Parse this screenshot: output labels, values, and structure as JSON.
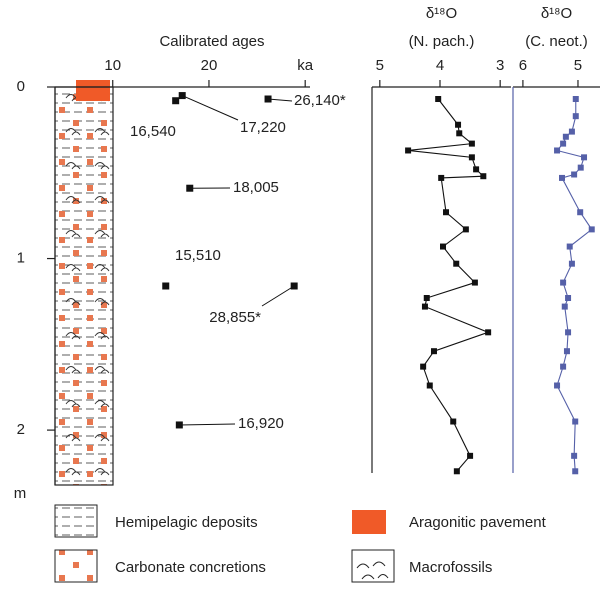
{
  "chart_data": [
    {
      "type": "scatter",
      "title": "Calibrated ages",
      "x": [
        16.54,
        17.22,
        26.14,
        18.005,
        15.51,
        28.855,
        16.92
      ],
      "value_labels": [
        "16,540",
        "17,220",
        "26,140*",
        "18,005",
        "15,510",
        "28,855*",
        "16,920"
      ],
      "y": [
        0.08,
        0.05,
        0.07,
        0.59,
        1.16,
        1.16,
        1.97
      ],
      "xlim": [
        4,
        30.5
      ],
      "xticks": [
        10,
        20,
        {
          "value": 30,
          "label": "ka"
        }
      ],
      "ylim": [
        0,
        2.32
      ],
      "yticks": [
        0,
        1,
        2
      ],
      "ylabel": "m",
      "color": "#111111"
    },
    {
      "type": "line",
      "title": "δ¹⁸O",
      "subtitle": "(N. pach.)",
      "xlim": [
        5.13,
        2.82
      ],
      "xticks": [
        5,
        4,
        3
      ],
      "ylim": [
        0,
        2.32
      ],
      "series": [
        {
          "color": "#111111",
          "x": [
            4.03,
            3.7,
            3.68,
            3.47,
            4.53,
            3.47,
            3.4,
            3.28,
            3.98,
            3.9,
            3.57,
            3.95,
            3.73,
            3.42,
            4.22,
            4.25,
            3.2,
            4.1,
            4.28,
            4.17,
            3.78,
            3.5,
            3.72
          ],
          "y": [
            0.07,
            0.22,
            0.27,
            0.33,
            0.37,
            0.41,
            0.48,
            0.52,
            0.53,
            0.73,
            0.83,
            0.93,
            1.03,
            1.14,
            1.23,
            1.28,
            1.43,
            1.54,
            1.63,
            1.74,
            1.95,
            2.15,
            2.24
          ]
        }
      ]
    },
    {
      "type": "line",
      "title": "δ¹⁸O",
      "subtitle": "(C. neot.)",
      "xlim": [
        6.18,
        4.6
      ],
      "xticks": [
        6,
        5
      ],
      "ylim": [
        0,
        2.32
      ],
      "series": [
        {
          "color": "#5560a8",
          "x": [
            5.04,
            5.04,
            5.11,
            5.22,
            5.27,
            5.38,
            4.89,
            4.95,
            5.07,
            5.29,
            4.96,
            4.75,
            5.15,
            5.11,
            5.27,
            5.18,
            5.24,
            5.18,
            5.2,
            5.27,
            5.38,
            5.05,
            5.07,
            5.05
          ],
          "y": [
            0.07,
            0.17,
            0.26,
            0.29,
            0.33,
            0.37,
            0.41,
            0.47,
            0.51,
            0.53,
            0.73,
            0.83,
            0.93,
            1.03,
            1.14,
            1.23,
            1.28,
            1.43,
            1.54,
            1.63,
            1.74,
            1.95,
            2.15,
            2.24
          ]
        }
      ]
    }
  ],
  "legend": [
    "Hemipelagic deposits",
    "Aragonitic pavement",
    "Carbonate concretions",
    "Macrofossils"
  ]
}
